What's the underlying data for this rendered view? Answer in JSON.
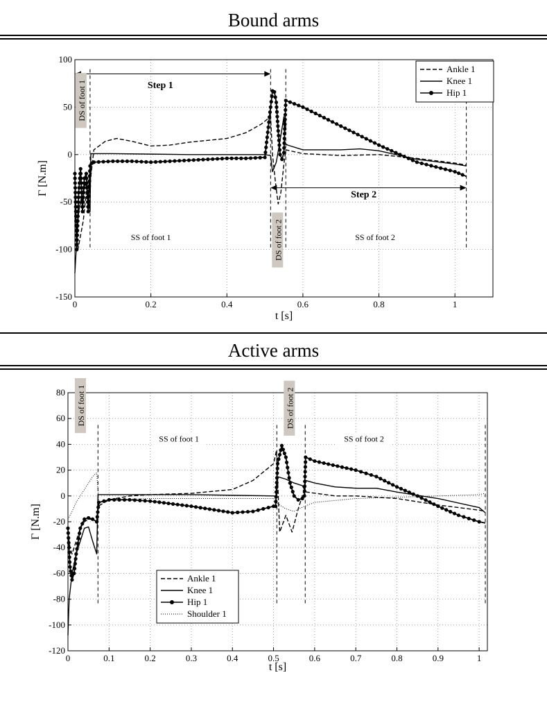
{
  "panels": [
    {
      "title": "Bound arms"
    },
    {
      "title": "Active arms"
    }
  ],
  "chart_data": [
    {
      "type": "line",
      "title": "Bound arms",
      "xlabel": "t [s]",
      "ylabel": "Γ [N.m]",
      "xlim": [
        0,
        1.1
      ],
      "ylim": [
        -150,
        100
      ],
      "xticks": [
        0,
        0.2,
        0.4,
        0.6,
        0.8,
        1
      ],
      "xtick_labels": [
        "0",
        "0.2",
        "0.4",
        "0.6",
        "0.8",
        "1"
      ],
      "yticks": [
        -150,
        -100,
        -50,
        0,
        50,
        100
      ],
      "ytick_labels": [
        "-150",
        "-100",
        "-50",
        "0",
        "50",
        "100"
      ],
      "grid": true,
      "legend_position": "top-right",
      "series": [
        {
          "name": "Ankle 1",
          "style": "dashed",
          "x": [
            0,
            0.003,
            0.008,
            0.015,
            0.022,
            0.03,
            0.035,
            0.04,
            0.05,
            0.08,
            0.11,
            0.15,
            0.2,
            0.25,
            0.3,
            0.35,
            0.4,
            0.45,
            0.49,
            0.515,
            0.52,
            0.528,
            0.535,
            0.542,
            0.55,
            0.555,
            0.6,
            0.7,
            0.8,
            0.9,
            1.0,
            1.03
          ],
          "y": [
            -40,
            -75,
            -100,
            -85,
            -70,
            -40,
            -50,
            -30,
            5,
            14,
            17,
            14,
            9,
            10,
            13,
            15,
            17,
            23,
            32,
            40,
            0,
            -30,
            -52,
            -40,
            -10,
            5,
            1,
            -1,
            0,
            -4,
            -9,
            -11
          ]
        },
        {
          "name": "Knee 1",
          "style": "solid",
          "x": [
            0,
            0.005,
            0.01,
            0.02,
            0.028,
            0.035,
            0.04,
            0.042,
            0.1,
            0.2,
            0.3,
            0.4,
            0.5,
            0.515,
            0.52,
            0.53,
            0.54,
            0.55,
            0.552,
            0.56,
            0.6,
            0.7,
            0.75,
            0.8,
            0.9,
            1.0,
            1.03
          ],
          "y": [
            -125,
            -90,
            -60,
            -40,
            -30,
            -45,
            -60,
            1,
            1,
            0.5,
            0,
            0,
            0,
            -1,
            -18,
            -8,
            15,
            40,
            12,
            10,
            5,
            5,
            6,
            4,
            -5,
            -10,
            -12
          ]
        },
        {
          "name": "Hip 1",
          "style": "solid-marker",
          "x": [
            0,
            0.005,
            0.01,
            0.015,
            0.02,
            0.025,
            0.03,
            0.035,
            0.04,
            0.045,
            0.05,
            0.1,
            0.15,
            0.2,
            0.25,
            0.3,
            0.35,
            0.4,
            0.45,
            0.5,
            0.515,
            0.52,
            0.525,
            0.53,
            0.535,
            0.54,
            0.545,
            0.55,
            0.555,
            0.6,
            0.7,
            0.8,
            0.9,
            1.0,
            1.03
          ],
          "y": [
            -20,
            -100,
            -40,
            -15,
            -60,
            -25,
            -20,
            -60,
            -12,
            -9,
            -8,
            -7,
            -7,
            -8,
            -7,
            -6,
            -5,
            -4,
            -4,
            -3,
            50,
            67,
            66,
            55,
            25,
            0,
            -5,
            2,
            57,
            50,
            30,
            10,
            -8,
            -18,
            -23
          ]
        }
      ],
      "annotations": [
        {
          "text": "Step 1",
          "x": 0.225,
          "y": 70
        },
        {
          "text": "Step 2",
          "x": 0.76,
          "y": -45
        },
        {
          "text": "DS of foot 1",
          "x": 0.018,
          "y": 57,
          "vertical": true
        },
        {
          "text": "SS of foot 1",
          "x": 0.2,
          "y": -90
        },
        {
          "text": "DS of foot 2",
          "x": 0.535,
          "y": -90,
          "vertical": true
        },
        {
          "text": "SS of foot 2",
          "x": 0.79,
          "y": -90
        }
      ],
      "phase_boundaries": [
        0.04,
        0.515,
        0.555,
        1.03
      ],
      "step_arrows": [
        {
          "x0": 0,
          "x1": 0.515,
          "y": 85
        },
        {
          "x0": 0.515,
          "x1": 1.03,
          "y": -35
        }
      ]
    },
    {
      "type": "line",
      "title": "Active arms",
      "xlabel": "t [s]",
      "ylabel": "Γ [N.m]",
      "xlim": [
        0,
        1.02
      ],
      "ylim": [
        -120,
        80
      ],
      "xticks": [
        0,
        0.1,
        0.2,
        0.3,
        0.4,
        0.5,
        0.6,
        0.7,
        0.8,
        0.9,
        1
      ],
      "xtick_labels": [
        "0",
        "0.1",
        "0.2",
        "0.3",
        "0.4",
        "0.5",
        "0.6",
        "0.7",
        "0.8",
        "0.9",
        "1"
      ],
      "yticks": [
        -120,
        -100,
        -80,
        -60,
        -40,
        -20,
        0,
        20,
        40,
        60,
        80
      ],
      "ytick_labels": [
        "-120",
        "-100",
        "-80",
        "-60",
        "-40",
        "-20",
        "0",
        "20",
        "40",
        "60",
        "80"
      ],
      "grid": true,
      "legend_position": "lower-left",
      "series": [
        {
          "name": "Ankle 1",
          "style": "dashed",
          "x": [
            0,
            0.005,
            0.01,
            0.02,
            0.03,
            0.04,
            0.05,
            0.06,
            0.07,
            0.073,
            0.1,
            0.15,
            0.2,
            0.3,
            0.4,
            0.45,
            0.5,
            0.507,
            0.515,
            0.53,
            0.545,
            0.56,
            0.575,
            0.58,
            0.65,
            0.7,
            0.8,
            0.9,
            1.0,
            1.015
          ],
          "y": [
            -28,
            -40,
            -45,
            -35,
            -25,
            -20,
            -18,
            -18,
            -20,
            -8,
            -3,
            0,
            1,
            2,
            5,
            12,
            25,
            35,
            -28,
            -15,
            -28,
            -10,
            5,
            3,
            0,
            0,
            -2,
            -7,
            -11,
            -12
          ]
        },
        {
          "name": "Knee 1",
          "style": "solid",
          "x": [
            0,
            0.003,
            0.01,
            0.02,
            0.03,
            0.04,
            0.05,
            0.06,
            0.07,
            0.073,
            0.1,
            0.2,
            0.3,
            0.4,
            0.5,
            0.508,
            0.509,
            0.53,
            0.55,
            0.57,
            0.575,
            0.578,
            0.6,
            0.65,
            0.7,
            0.75,
            0.8,
            0.9,
            1.0,
            1.015
          ],
          "y": [
            -108,
            -80,
            -60,
            -45,
            -35,
            -25,
            -24,
            -35,
            -45,
            1,
            1,
            1,
            1,
            0.5,
            0,
            0,
            15,
            13,
            10,
            8,
            5,
            12,
            10,
            7,
            6,
            6,
            3,
            -2,
            -9,
            -13
          ]
        },
        {
          "name": "Hip 1",
          "style": "solid-marker",
          "x": [
            0,
            0.005,
            0.01,
            0.015,
            0.02,
            0.03,
            0.04,
            0.05,
            0.06,
            0.07,
            0.075,
            0.1,
            0.15,
            0.2,
            0.3,
            0.4,
            0.45,
            0.5,
            0.505,
            0.51,
            0.52,
            0.53,
            0.54,
            0.55,
            0.56,
            0.57,
            0.575,
            0.578,
            0.6,
            0.7,
            0.75,
            0.8,
            0.85,
            0.9,
            0.95,
            1.0,
            1.015
          ],
          "y": [
            -25,
            -55,
            -65,
            -60,
            -45,
            -25,
            -18,
            -17,
            -18,
            -20,
            -5,
            -3,
            -3,
            -4,
            -8,
            -13,
            -12,
            -8,
            -8,
            25,
            39,
            30,
            10,
            0,
            -3,
            -2,
            0,
            30,
            27,
            20,
            15,
            7,
            0,
            -8,
            -15,
            -20,
            -21
          ]
        },
        {
          "name": "Shoulder 1",
          "style": "dotted",
          "x": [
            0,
            0.01,
            0.02,
            0.04,
            0.06,
            0.07,
            0.075,
            0.1,
            0.2,
            0.3,
            0.4,
            0.5,
            0.505,
            0.51,
            0.53,
            0.55,
            0.575,
            0.6,
            0.7,
            0.8,
            0.9,
            1.0,
            1.015
          ],
          "y": [
            -18,
            -12,
            -5,
            5,
            15,
            18,
            -5,
            -3,
            -2,
            -2,
            -2,
            -2,
            -3,
            -6,
            -10,
            -12,
            -8,
            -5,
            -2,
            -1,
            0,
            1,
            2
          ]
        }
      ],
      "annotations": [
        {
          "text": "DS of foot 1",
          "x": 0.032,
          "y": 70,
          "vertical": true
        },
        {
          "text": "SS of foot 1",
          "x": 0.27,
          "y": 42
        },
        {
          "text": "DS of foot 2",
          "x": 0.54,
          "y": 68,
          "vertical": true
        },
        {
          "text": "SS of foot 2",
          "x": 0.72,
          "y": 42
        }
      ],
      "phase_boundaries": [
        0.073,
        0.508,
        0.577,
        1.015
      ]
    }
  ]
}
